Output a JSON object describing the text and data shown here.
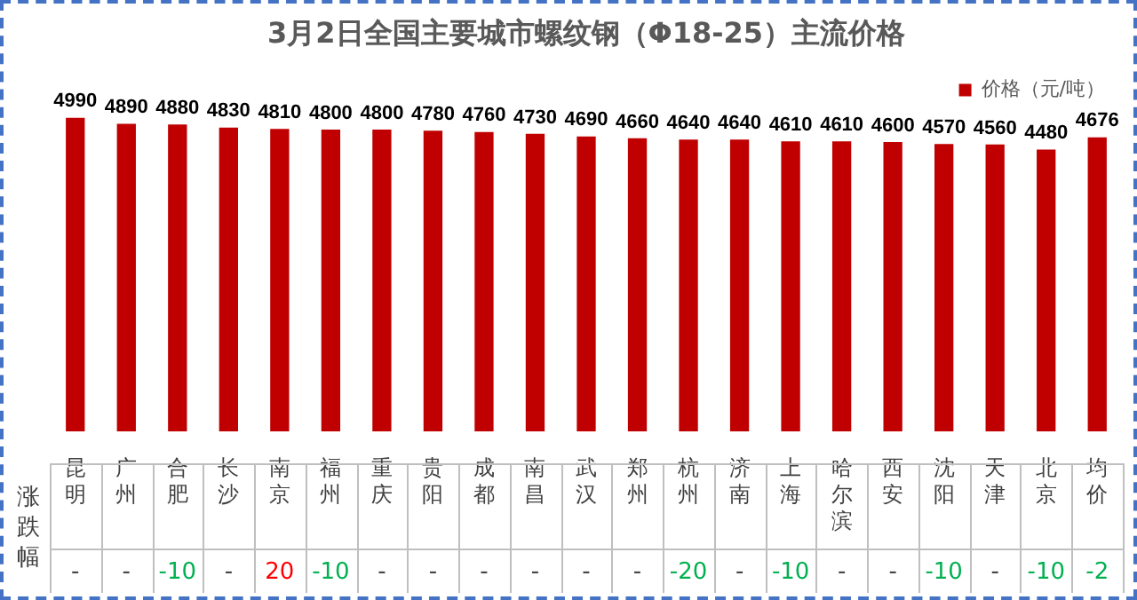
{
  "chart_data": {
    "type": "bar",
    "title": "3月2日全国主要城市螺纹钢（Φ18-25）主流价格",
    "categories": [
      "昆明",
      "广州",
      "合肥",
      "长沙",
      "南京",
      "福州",
      "重庆",
      "贵阳",
      "成都",
      "南昌",
      "武汉",
      "郑州",
      "杭州",
      "济南",
      "上海",
      "哈尔滨",
      "西安",
      "沈阳",
      "天津",
      "北京",
      "均价"
    ],
    "series": [
      {
        "name": "价格（元/吨）",
        "color": "#c00000",
        "values": [
          4990,
          4890,
          4880,
          4830,
          4810,
          4800,
          4800,
          4780,
          4760,
          4730,
          4690,
          4660,
          4640,
          4640,
          4610,
          4610,
          4600,
          4570,
          4560,
          4480,
          4676
        ]
      }
    ],
    "data_labels": true,
    "legend": "top right",
    "annotations": [
      "涨跌幅",
      "-",
      "-",
      "-10",
      "-",
      "20",
      "-10",
      "-",
      "-",
      "-",
      "-",
      "-",
      "-",
      "-20",
      "-",
      "-10",
      "-",
      "-",
      "-10",
      "-",
      "-10",
      "-2"
    ]
  }
}
